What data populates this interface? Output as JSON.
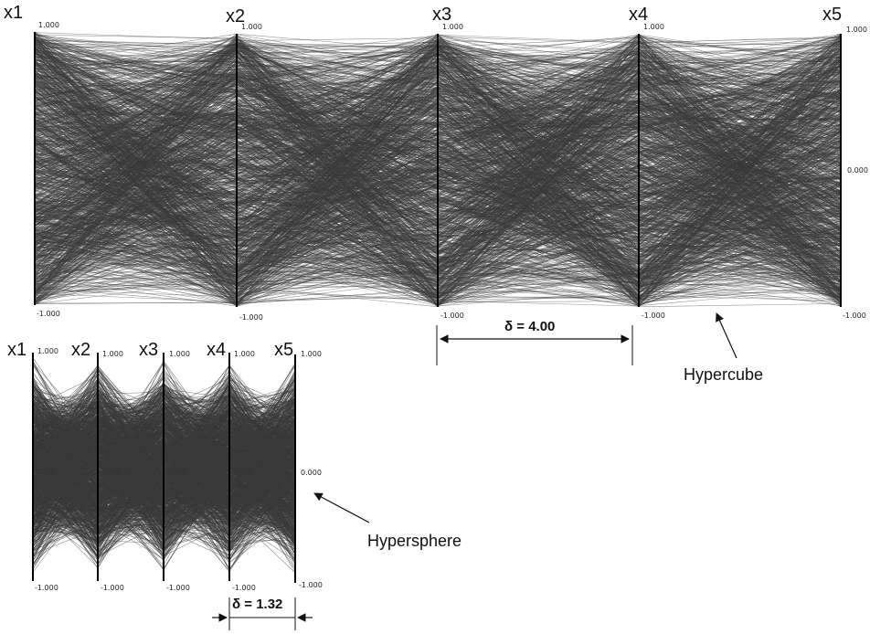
{
  "hypercube": {
    "axes": [
      "x1",
      "x2",
      "x3",
      "x4",
      "x5"
    ],
    "top_tick": "1.000",
    "bottom_tick": "-1.000",
    "mid_tick": "0.000",
    "delta_label": "δ = 4.00",
    "callout": "Hypercube",
    "value_range": [
      -1,
      1
    ]
  },
  "hypersphere": {
    "axes": [
      "x1",
      "x2",
      "x3",
      "x4",
      "x5"
    ],
    "top_tick": "1.000",
    "bottom_tick": "-1.000",
    "mid_tick": "0.000",
    "delta_label": "δ = 1.32",
    "callout": "Hypersphere",
    "value_range": [
      -1,
      1
    ]
  },
  "colors": {
    "lines": "#3a3a3a",
    "axis": "#000000"
  }
}
